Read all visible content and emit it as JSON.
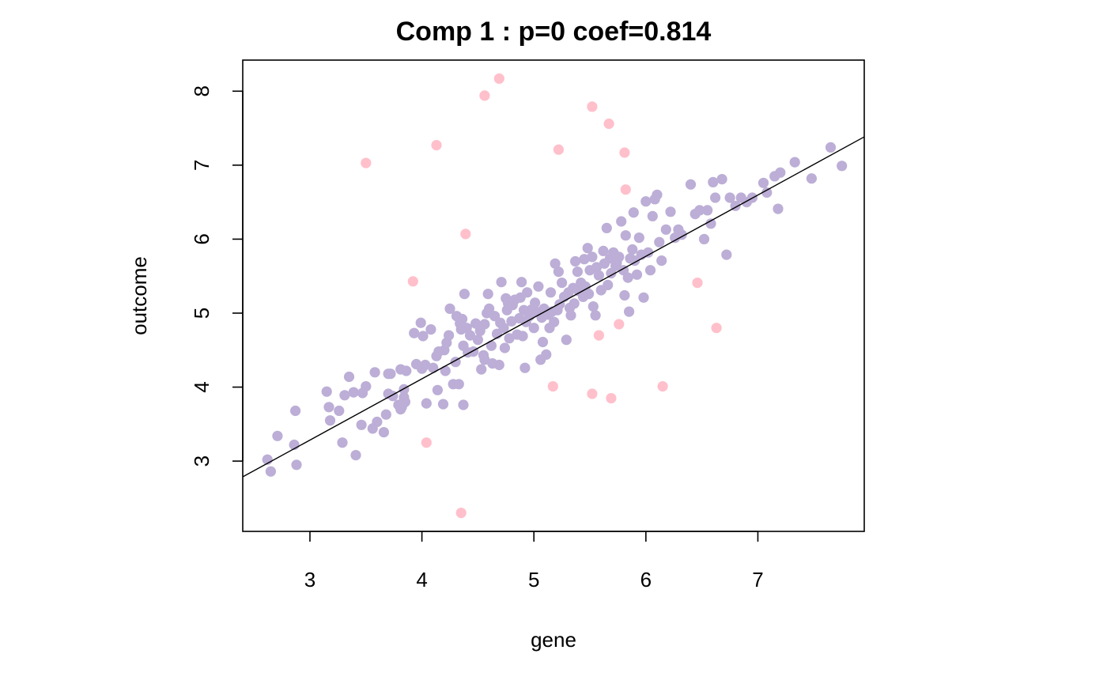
{
  "chart_data": {
    "type": "scatter",
    "title": "Comp 1 : p=0 coef=0.814",
    "xlabel": "gene",
    "ylabel": "outcome",
    "xlim": [
      2.4,
      7.95
    ],
    "ylim": [
      2.05,
      8.42
    ],
    "x_ticks": [
      3,
      4,
      5,
      6,
      7
    ],
    "y_ticks": [
      3,
      4,
      5,
      6,
      7,
      8
    ],
    "x_tick_labels": [
      "3",
      "4",
      "5",
      "6",
      "7"
    ],
    "y_tick_labels": [
      "3",
      "4",
      "5",
      "6",
      "7",
      "8"
    ],
    "grid": false,
    "regression_line": {
      "intercept": 0.8,
      "slope": 0.828
    },
    "series": [
      {
        "color": "#BCAED6",
        "points": [
          [
            2.62,
            3.02
          ],
          [
            2.65,
            2.86
          ],
          [
            2.71,
            3.34
          ],
          [
            2.86,
            3.22
          ],
          [
            2.87,
            3.68
          ],
          [
            2.88,
            2.95
          ],
          [
            3.15,
            3.94
          ],
          [
            3.17,
            3.73
          ],
          [
            3.18,
            3.55
          ],
          [
            3.26,
            3.68
          ],
          [
            3.29,
            3.25
          ],
          [
            3.31,
            3.89
          ],
          [
            3.35,
            4.14
          ],
          [
            3.39,
            3.93
          ],
          [
            3.41,
            3.08
          ],
          [
            3.46,
            3.49
          ],
          [
            3.47,
            3.92
          ],
          [
            3.5,
            4.01
          ],
          [
            3.56,
            3.44
          ],
          [
            3.58,
            4.2
          ],
          [
            3.6,
            3.53
          ],
          [
            3.66,
            3.39
          ],
          [
            3.68,
            3.63
          ],
          [
            3.7,
            3.91
          ],
          [
            3.7,
            4.18
          ],
          [
            3.72,
            4.18
          ],
          [
            3.74,
            3.88
          ],
          [
            3.79,
            3.76
          ],
          [
            3.81,
            4.24
          ],
          [
            3.81,
            3.7
          ],
          [
            3.82,
            3.73
          ],
          [
            3.84,
            3.97
          ],
          [
            3.84,
            3.86
          ],
          [
            3.85,
            3.8
          ],
          [
            3.86,
            4.22
          ],
          [
            3.93,
            4.73
          ],
          [
            3.95,
            4.31
          ],
          [
            3.99,
            4.87
          ],
          [
            4.0,
            4.25
          ],
          [
            4.01,
            4.69
          ],
          [
            4.03,
            4.3
          ],
          [
            4.04,
            3.78
          ],
          [
            4.08,
            4.78
          ],
          [
            4.1,
            4.26
          ],
          [
            4.13,
            4.42
          ],
          [
            4.14,
            3.96
          ],
          [
            4.15,
            4.48
          ],
          [
            4.19,
            3.77
          ],
          [
            4.2,
            4.5
          ],
          [
            4.21,
            4.22
          ],
          [
            4.22,
            4.6
          ],
          [
            4.24,
            4.7
          ],
          [
            4.25,
            5.06
          ],
          [
            4.28,
            4.04
          ],
          [
            4.3,
            4.34
          ],
          [
            4.31,
            4.96
          ],
          [
            4.33,
            4.04
          ],
          [
            4.34,
            4.86
          ],
          [
            4.35,
            4.78
          ],
          [
            4.36,
            4.92
          ],
          [
            4.37,
            4.56
          ],
          [
            4.37,
            3.76
          ],
          [
            4.38,
            5.26
          ],
          [
            4.4,
            4.8
          ],
          [
            4.41,
            4.47
          ],
          [
            4.43,
            4.7
          ],
          [
            4.46,
            4.48
          ],
          [
            4.48,
            4.86
          ],
          [
            4.5,
            4.64
          ],
          [
            4.52,
            4.76
          ],
          [
            4.53,
            4.24
          ],
          [
            4.55,
            4.43
          ],
          [
            4.56,
            4.85
          ],
          [
            4.56,
            4.37
          ],
          [
            4.58,
            5.0
          ],
          [
            4.59,
            5.26
          ],
          [
            4.6,
            5.06
          ],
          [
            4.62,
            4.56
          ],
          [
            4.63,
            4.32
          ],
          [
            4.65,
            4.96
          ],
          [
            4.67,
            4.72
          ],
          [
            4.69,
            4.3
          ],
          [
            4.7,
            4.87
          ],
          [
            4.71,
            5.42
          ],
          [
            4.73,
            4.8
          ],
          [
            4.74,
            4.53
          ],
          [
            4.75,
            5.2
          ],
          [
            4.76,
            5.04
          ],
          [
            4.77,
            5.13
          ],
          [
            4.78,
            4.66
          ],
          [
            4.8,
            4.89
          ],
          [
            4.81,
            5.11
          ],
          [
            4.83,
            5.18
          ],
          [
            4.85,
            4.71
          ],
          [
            4.87,
            4.93
          ],
          [
            4.88,
            5.21
          ],
          [
            4.89,
            5.42
          ],
          [
            4.9,
            4.69
          ],
          [
            4.91,
            5.04
          ],
          [
            4.92,
            4.26
          ],
          [
            4.93,
            4.88
          ],
          [
            4.94,
            5.28
          ],
          [
            4.96,
            4.96
          ],
          [
            4.98,
            5.05
          ],
          [
            5.0,
            4.8
          ],
          [
            5.01,
            5.14
          ],
          [
            5.02,
            5.02
          ],
          [
            5.04,
            5.36
          ],
          [
            5.06,
            4.37
          ],
          [
            5.07,
            4.94
          ],
          [
            5.08,
            4.61
          ],
          [
            5.09,
            5.06
          ],
          [
            5.11,
            4.44
          ],
          [
            5.13,
            4.98
          ],
          [
            5.14,
            4.8
          ],
          [
            5.15,
            5.28
          ],
          [
            5.16,
            5.02
          ],
          [
            5.18,
            4.88
          ],
          [
            5.19,
            5.67
          ],
          [
            5.21,
            5.04
          ],
          [
            5.22,
            5.56
          ],
          [
            5.23,
            5.12
          ],
          [
            5.25,
            5.41
          ],
          [
            5.27,
            5.22
          ],
          [
            5.29,
            4.64
          ],
          [
            5.31,
            5.28
          ],
          [
            5.32,
            5.07
          ],
          [
            5.33,
            4.97
          ],
          [
            5.35,
            5.34
          ],
          [
            5.36,
            5.13
          ],
          [
            5.37,
            5.7
          ],
          [
            5.39,
            5.56
          ],
          [
            5.4,
            5.3
          ],
          [
            5.42,
            5.41
          ],
          [
            5.44,
            5.22
          ],
          [
            5.45,
            5.73
          ],
          [
            5.46,
            5.36
          ],
          [
            5.48,
            5.88
          ],
          [
            5.49,
            5.26
          ],
          [
            5.5,
            5.58
          ],
          [
            5.52,
            5.76
          ],
          [
            5.53,
            5.09
          ],
          [
            5.55,
            4.97
          ],
          [
            5.56,
            5.62
          ],
          [
            5.58,
            5.51
          ],
          [
            5.6,
            5.31
          ],
          [
            5.62,
            5.84
          ],
          [
            5.63,
            5.67
          ],
          [
            5.65,
            6.15
          ],
          [
            5.66,
            5.38
          ],
          [
            5.68,
            5.74
          ],
          [
            5.69,
            5.54
          ],
          [
            5.71,
            5.82
          ],
          [
            5.73,
            5.64
          ],
          [
            5.74,
            5.68
          ],
          [
            5.76,
            5.76
          ],
          [
            5.78,
            6.24
          ],
          [
            5.8,
            5.58
          ],
          [
            5.81,
            5.24
          ],
          [
            5.82,
            6.05
          ],
          [
            5.84,
            5.48
          ],
          [
            5.85,
            5.02
          ],
          [
            5.86,
            5.74
          ],
          [
            5.88,
            5.86
          ],
          [
            5.89,
            6.36
          ],
          [
            5.9,
            5.71
          ],
          [
            5.92,
            5.52
          ],
          [
            5.94,
            6.02
          ],
          [
            5.96,
            5.79
          ],
          [
            5.98,
            5.21
          ],
          [
            6.0,
            6.51
          ],
          [
            6.02,
            5.82
          ],
          [
            6.04,
            5.58
          ],
          [
            6.06,
            6.31
          ],
          [
            6.08,
            6.54
          ],
          [
            6.1,
            6.6
          ],
          [
            6.12,
            5.96
          ],
          [
            6.14,
            5.71
          ],
          [
            6.18,
            6.13
          ],
          [
            6.22,
            6.37
          ],
          [
            6.26,
            6.02
          ],
          [
            6.29,
            6.13
          ],
          [
            6.32,
            6.06
          ],
          [
            6.4,
            6.74
          ],
          [
            6.44,
            6.34
          ],
          [
            6.48,
            6.39
          ],
          [
            6.52,
            6.0
          ],
          [
            6.55,
            6.39
          ],
          [
            6.58,
            6.21
          ],
          [
            6.6,
            6.77
          ],
          [
            6.62,
            6.56
          ],
          [
            6.68,
            6.81
          ],
          [
            6.72,
            5.79
          ],
          [
            6.75,
            6.56
          ],
          [
            6.8,
            6.45
          ],
          [
            6.85,
            6.56
          ],
          [
            6.9,
            6.5
          ],
          [
            6.95,
            6.56
          ],
          [
            7.05,
            6.76
          ],
          [
            7.08,
            6.63
          ],
          [
            7.15,
            6.85
          ],
          [
            7.18,
            6.41
          ],
          [
            7.2,
            6.9
          ],
          [
            7.33,
            7.04
          ],
          [
            7.48,
            6.82
          ],
          [
            7.65,
            7.24
          ],
          [
            7.75,
            6.99
          ]
        ]
      },
      {
        "color": "#FFC0CB",
        "points": [
          [
            3.5,
            7.03
          ],
          [
            3.92,
            5.43
          ],
          [
            4.04,
            3.25
          ],
          [
            4.13,
            7.27
          ],
          [
            4.35,
            2.3
          ],
          [
            4.39,
            6.07
          ],
          [
            4.56,
            7.94
          ],
          [
            4.69,
            8.17
          ],
          [
            5.17,
            4.01
          ],
          [
            5.22,
            7.21
          ],
          [
            5.52,
            7.79
          ],
          [
            5.52,
            3.91
          ],
          [
            5.58,
            4.7
          ],
          [
            5.67,
            7.56
          ],
          [
            5.69,
            3.85
          ],
          [
            5.76,
            4.85
          ],
          [
            5.81,
            7.17
          ],
          [
            5.82,
            6.67
          ],
          [
            6.15,
            4.01
          ],
          [
            6.46,
            5.41
          ],
          [
            6.63,
            4.8
          ]
        ]
      }
    ]
  }
}
